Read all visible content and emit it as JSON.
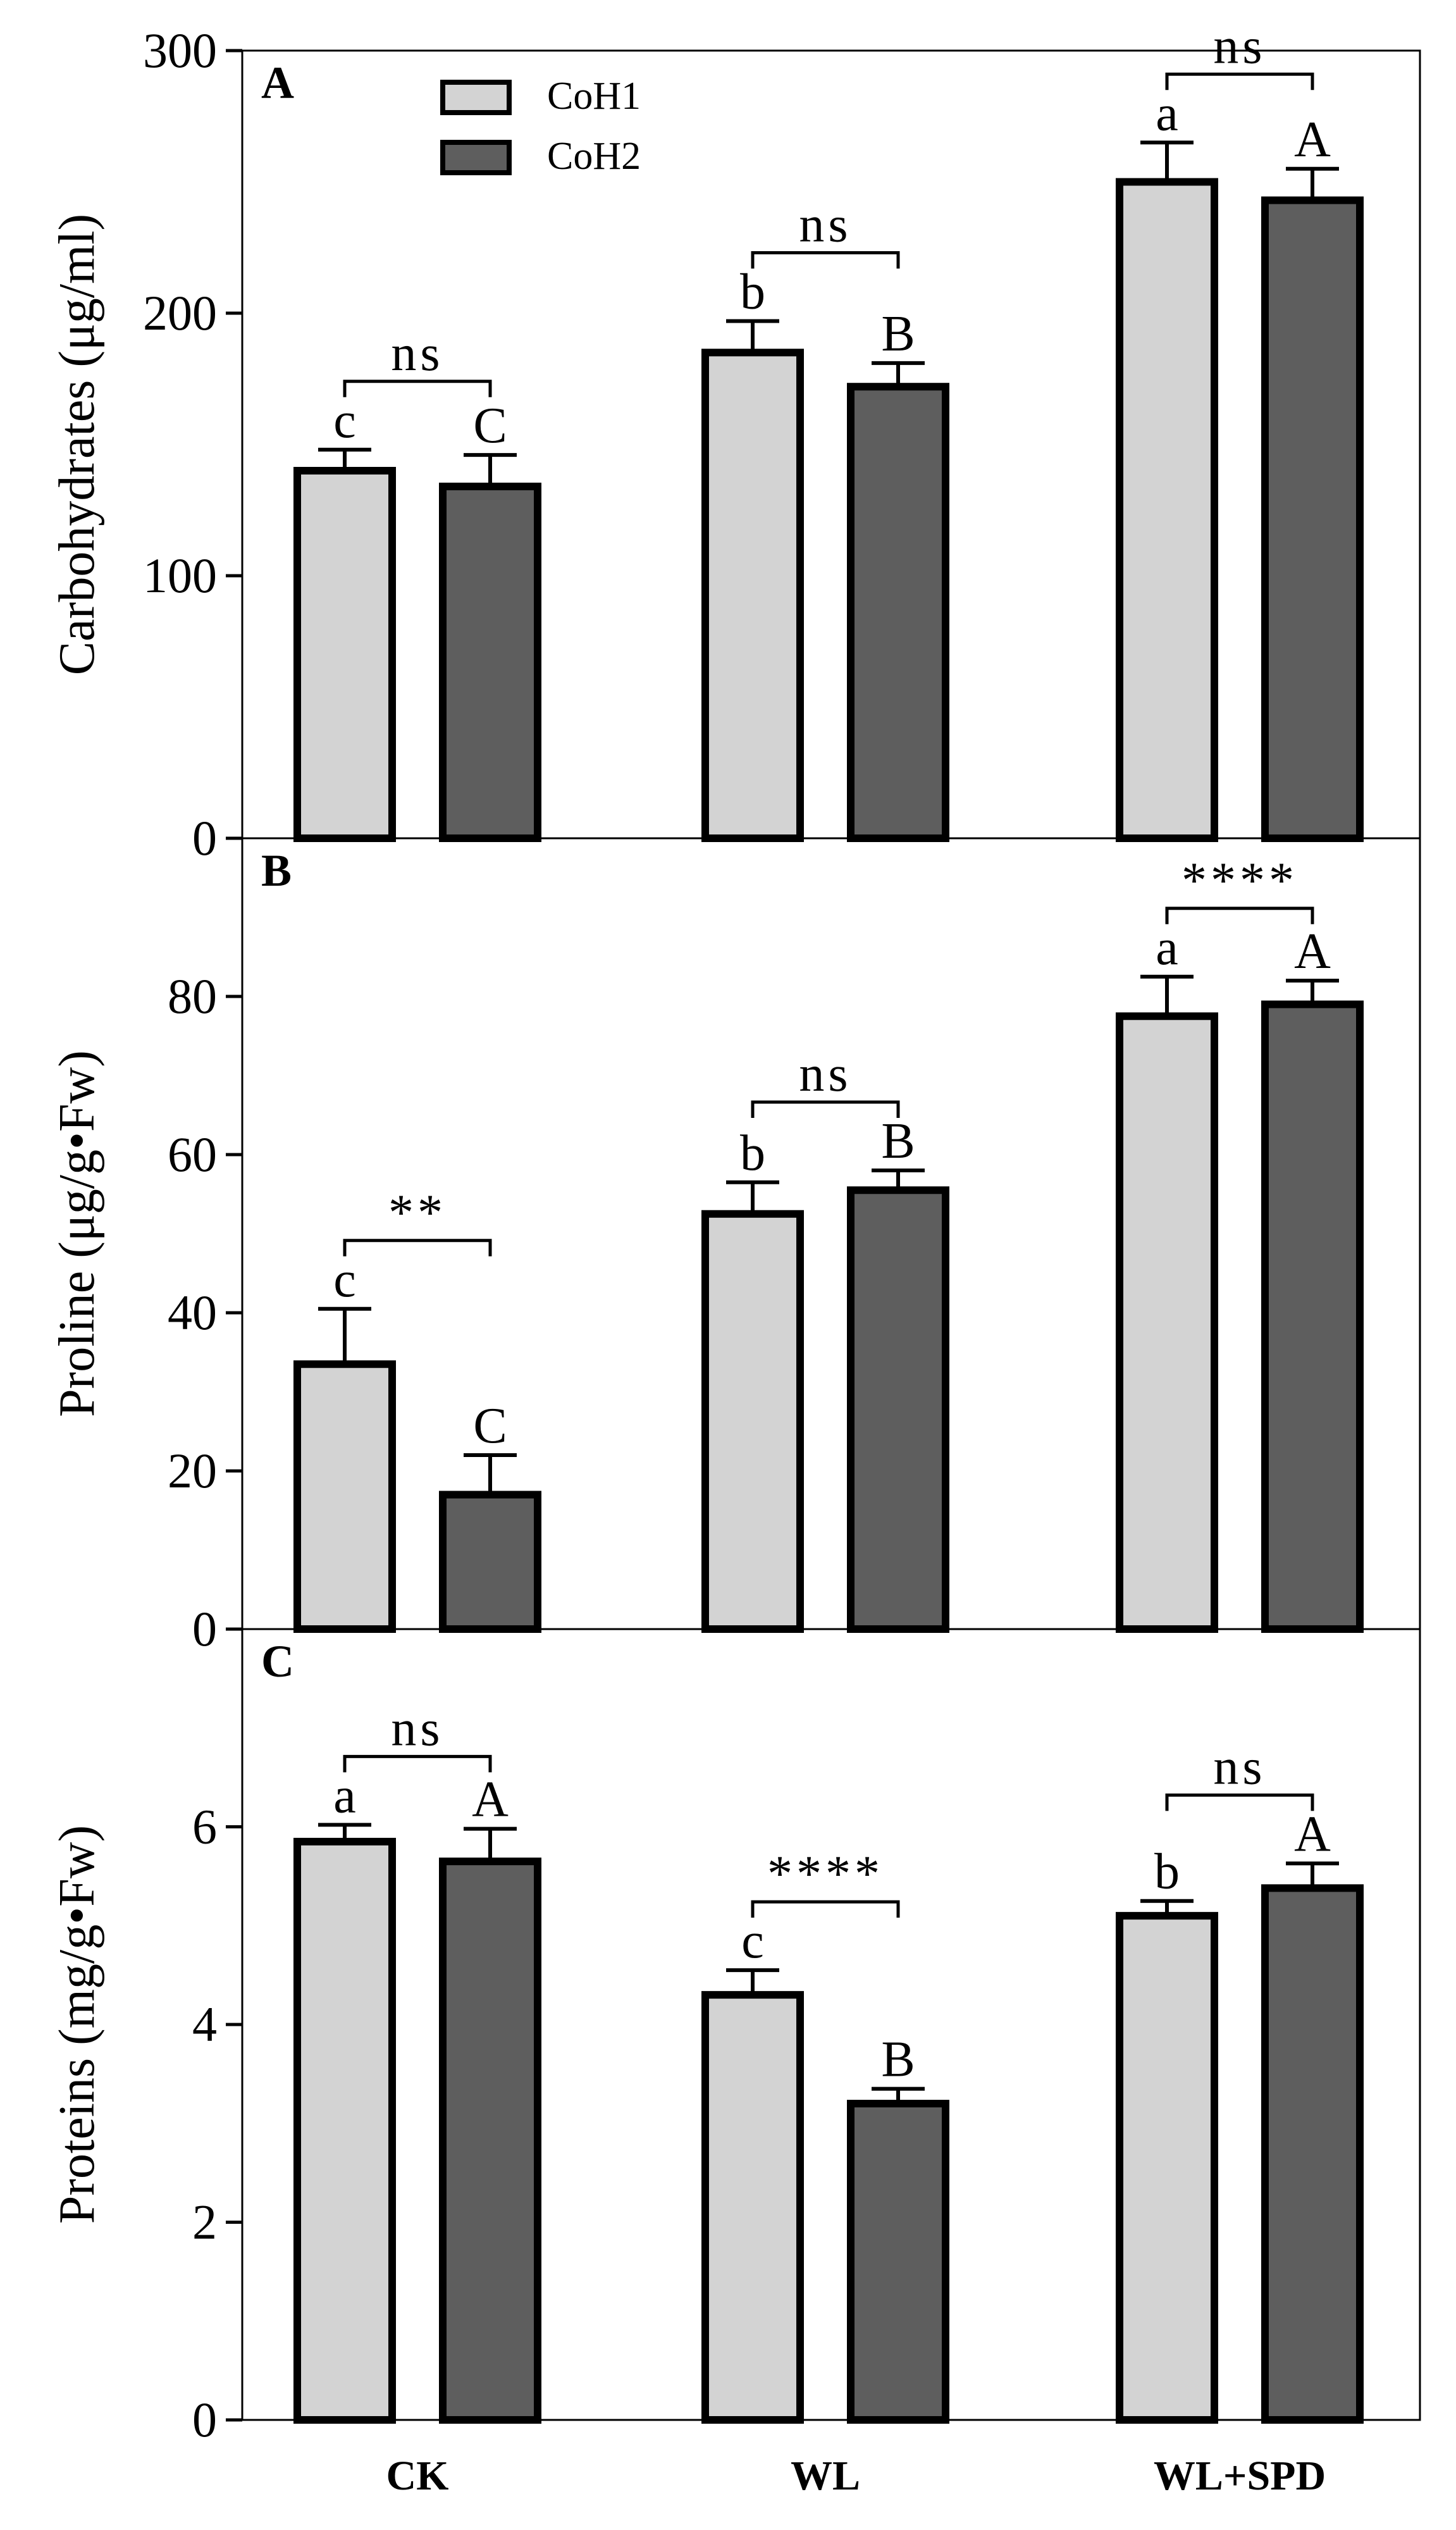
{
  "colors": {
    "CoH1": "#d3d3d3",
    "CoH2": "#5e5e5e",
    "stroke": "#000000"
  },
  "legend": [
    {
      "key": "CoH1",
      "label": "CoH1"
    },
    {
      "key": "CoH2",
      "label": "CoH2"
    }
  ],
  "chart_data": [
    {
      "type": "bar",
      "panel": "A",
      "ylabel": "Carbohydrates (μg/ml)",
      "ylim": [
        0,
        300
      ],
      "yticks": [
        0,
        100,
        200,
        300
      ],
      "categories": [
        "CK",
        "WL",
        "WL+SPD"
      ],
      "series": [
        {
          "name": "CoH1",
          "values": [
            140,
            185,
            250
          ],
          "errors": [
            8,
            12,
            15
          ],
          "letters": [
            "c",
            "b",
            "a"
          ]
        },
        {
          "name": "CoH2",
          "values": [
            134,
            172,
            243
          ],
          "errors": [
            12,
            9,
            12
          ],
          "letters": [
            "C",
            "B",
            "A"
          ]
        }
      ],
      "significance": [
        "ns",
        "ns",
        "ns"
      ],
      "legend_position": "top-left"
    },
    {
      "type": "bar",
      "panel": "B",
      "ylabel": "Proline (μg/g•Fw)",
      "ylim": [
        0,
        100
      ],
      "yticks": [
        0,
        20,
        40,
        60,
        80
      ],
      "categories": [
        "CK",
        "WL",
        "WL+SPD"
      ],
      "series": [
        {
          "name": "CoH1",
          "values": [
            33.5,
            52.5,
            77.5
          ],
          "errors": [
            7,
            4,
            5
          ],
          "letters": [
            "c",
            "b",
            "a"
          ]
        },
        {
          "name": "CoH2",
          "values": [
            17,
            55.5,
            79
          ],
          "errors": [
            5,
            2.5,
            3
          ],
          "letters": [
            "C",
            "B",
            "A"
          ]
        }
      ],
      "significance": [
        "**",
        "ns",
        "****"
      ]
    },
    {
      "type": "bar",
      "panel": "C",
      "ylabel": "Proteins (mg/g•Fw)",
      "ylim": [
        0,
        8
      ],
      "yticks": [
        0,
        2,
        4,
        6
      ],
      "xlabel_ticks": [
        "CK",
        "WL",
        "WL+SPD"
      ],
      "categories": [
        "CK",
        "WL",
        "WL+SPD"
      ],
      "series": [
        {
          "name": "CoH1",
          "values": [
            5.85,
            4.3,
            5.1
          ],
          "errors": [
            0.17,
            0.25,
            0.15
          ],
          "letters": [
            "a",
            "c",
            "b"
          ]
        },
        {
          "name": "CoH2",
          "values": [
            5.65,
            3.2,
            5.38
          ],
          "errors": [
            0.33,
            0.15,
            0.25
          ],
          "letters": [
            "A",
            "B",
            "A"
          ]
        }
      ],
      "significance": [
        "ns",
        "****",
        "ns"
      ]
    }
  ]
}
